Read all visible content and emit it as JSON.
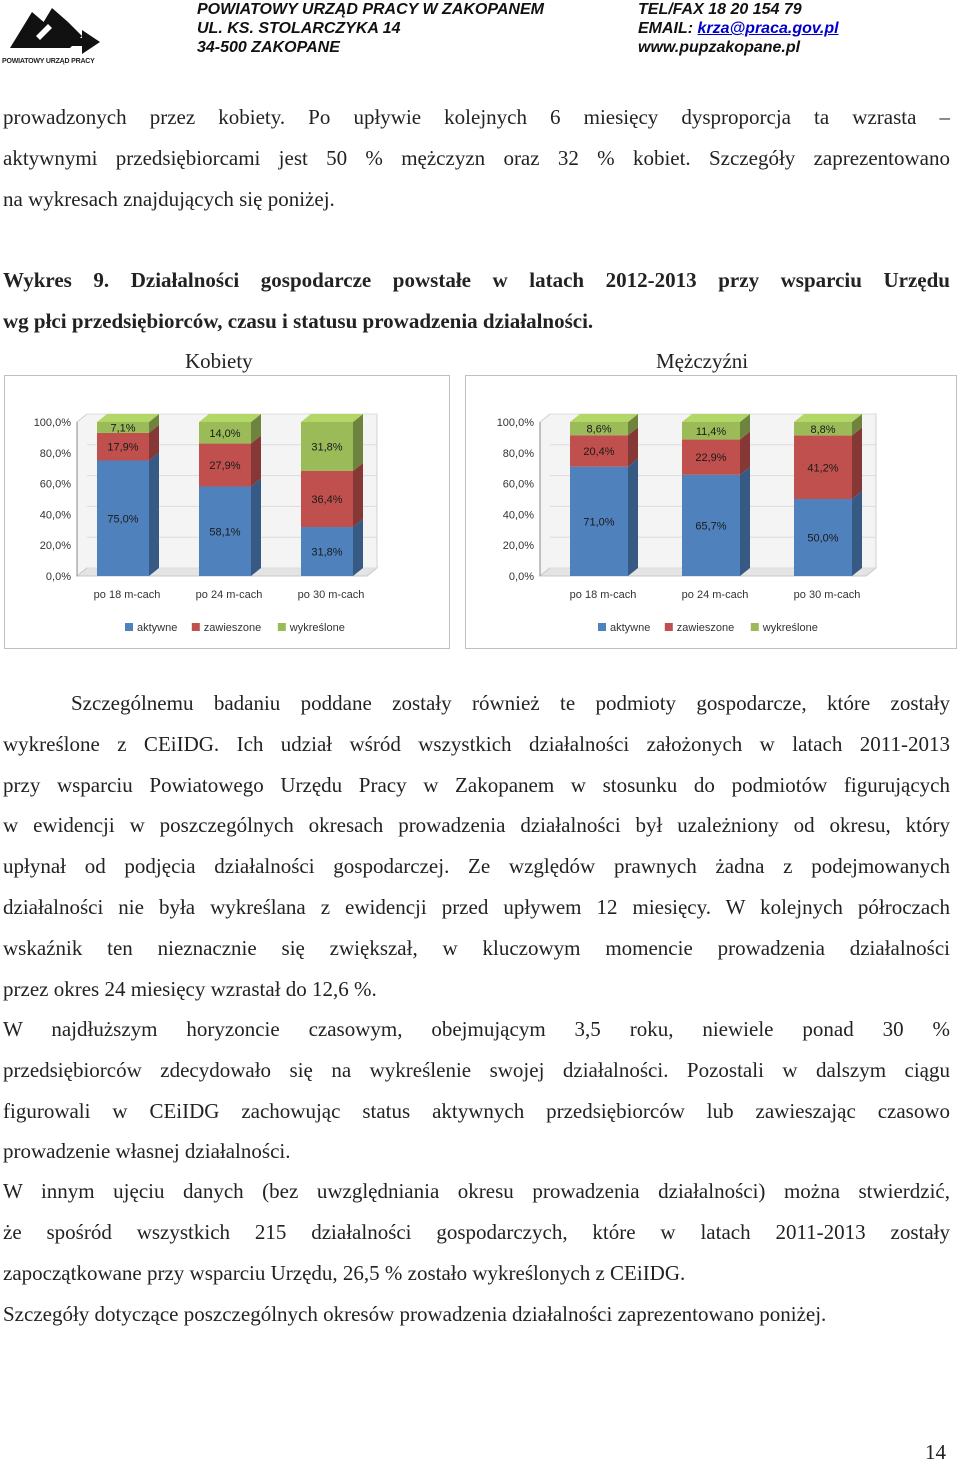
{
  "header": {
    "left_lines": [
      "POWIATOWY URZĄD PRACY W ZAKOPANEM",
      "UL. KS. STOLARCZYKA 14",
      "34-500 ZAKOPANE"
    ],
    "tel": "TEL/FAX 18 20 154 79",
    "email_label": "EMAIL: ",
    "email": "krza@praca.gov.pl",
    "www": "www.pupzakopane.pl",
    "logo_caption": "POWIATOWY URZĄD PRACY"
  },
  "intro": {
    "line1": "prowadzonych przez kobiety. Po upływie kolejnych 6 miesięcy dysproporcja ta wzrasta –",
    "line2": "aktywnymi przedsiębiorcami jest 50 % mężczyzn oraz 32 % kobiet. Szczegóły zaprezentowano",
    "line3": "na wykresach znajdujących się poniżej."
  },
  "figure": {
    "line1": "Wykres 9. Działalności gospodarcze powstałe w latach 2012-2013 przy wsparciu Urzędu",
    "line2": "wg płci przedsiębiorców, czasu i statusu prowadzenia działalności.",
    "women_title": "Kobiety",
    "men_title": "Mężczyźni"
  },
  "colors": {
    "aktywne": "#4f81bd",
    "zawieszone": "#c0504d",
    "wykreslone": "#9bbb59"
  },
  "chart_data": [
    {
      "type": "bar",
      "stacked": true,
      "categories": [
        "po 18 m-cach",
        "po 24 m-cach",
        "po 30 m-cach"
      ],
      "series": [
        {
          "name": "aktywne",
          "values": [
            75.0,
            58.1,
            31.8
          ],
          "labels": [
            "75,0%",
            "58,1%",
            "31,8%"
          ]
        },
        {
          "name": "zawieszone",
          "values": [
            17.9,
            27.9,
            36.4
          ],
          "labels": [
            "17,9%",
            "27,9%",
            "36,4%"
          ]
        },
        {
          "name": "wykreślone",
          "values": [
            7.1,
            14.0,
            31.8
          ],
          "labels": [
            "7,1%",
            "14,0%",
            "31,8%"
          ]
        }
      ],
      "yticks": [
        "0,0%",
        "20,0%",
        "40,0%",
        "60,0%",
        "80,0%",
        "100,0%"
      ],
      "ylim": [
        0,
        100
      ],
      "legend": "bottom"
    },
    {
      "type": "bar",
      "stacked": true,
      "categories": [
        "po 18 m-cach",
        "po 24 m-cach",
        "po 30 m-cach"
      ],
      "series": [
        {
          "name": "aktywne",
          "values": [
            71.0,
            65.7,
            50.0
          ],
          "labels": [
            "71,0%",
            "65,7%",
            "50,0%"
          ]
        },
        {
          "name": "zawieszone",
          "values": [
            20.4,
            22.9,
            41.2
          ],
          "labels": [
            "20,4%",
            "22,9%",
            "41,2%"
          ]
        },
        {
          "name": "wykreślone",
          "values": [
            8.6,
            11.4,
            8.8
          ],
          "labels": [
            "8,6%",
            "11,4%",
            "8,8%"
          ]
        }
      ],
      "yticks": [
        "0,0%",
        "20,0%",
        "40,0%",
        "60,0%",
        "80,0%",
        "100,0%"
      ],
      "ylim": [
        0,
        100
      ],
      "legend": "bottom"
    }
  ],
  "body": {
    "p1": [
      "Szczególnemu badaniu poddane zostały również te podmioty gospodarcze, które zostały",
      "wykreślone z CEiIDG. Ich udział wśród wszystkich działalności założonych w latach 2011-2013",
      "przy wsparciu Powiatowego Urzędu Pracy w Zakopanem w stosunku do podmiotów figurujących",
      "w ewidencji w poszczególnych okresach prowadzenia działalności był uzależniony od okresu, który",
      "upłynał od podjęcia działalności gospodarczej. Ze względów prawnych żadna z podejmowanych",
      "działalności nie była wykreślana z ewidencji przed upływem 12 miesięcy. W kolejnych półroczach",
      "wskaźnik ten nieznacznie się zwiększał, w kluczowym momencie prowadzenia działalności",
      "przez okres 24 miesięcy wzrastał do 12,6 %."
    ],
    "p2": [
      "W najdłuższym horyzoncie czasowym, obejmującym 3,5 roku, niewiele ponad 30 %",
      "przedsiębiorców zdecydowało się na wykreślenie swojej działalności. Pozostali w dalszym ciągu",
      "figurowali w CEiIDG zachowując status aktywnych przedsiębiorców lub zawieszając czasowo",
      "prowadzenie własnej działalności."
    ],
    "p3": [
      "W innym ujęciu danych (bez uwzględniania okresu prowadzenia działalności) można stwierdzić,",
      "że spośród wszystkich 215 działalności gospodarczych, które w latach 2011-2013 zostały",
      "zapoczątkowane przy wsparciu Urzędu, 26,5 % zostało wykreślonych z CEiIDG."
    ],
    "p4": "Szczegóły dotyczące poszczególnych okresów prowadzenia działalności zaprezentowano poniżej."
  },
  "page_number": "14"
}
